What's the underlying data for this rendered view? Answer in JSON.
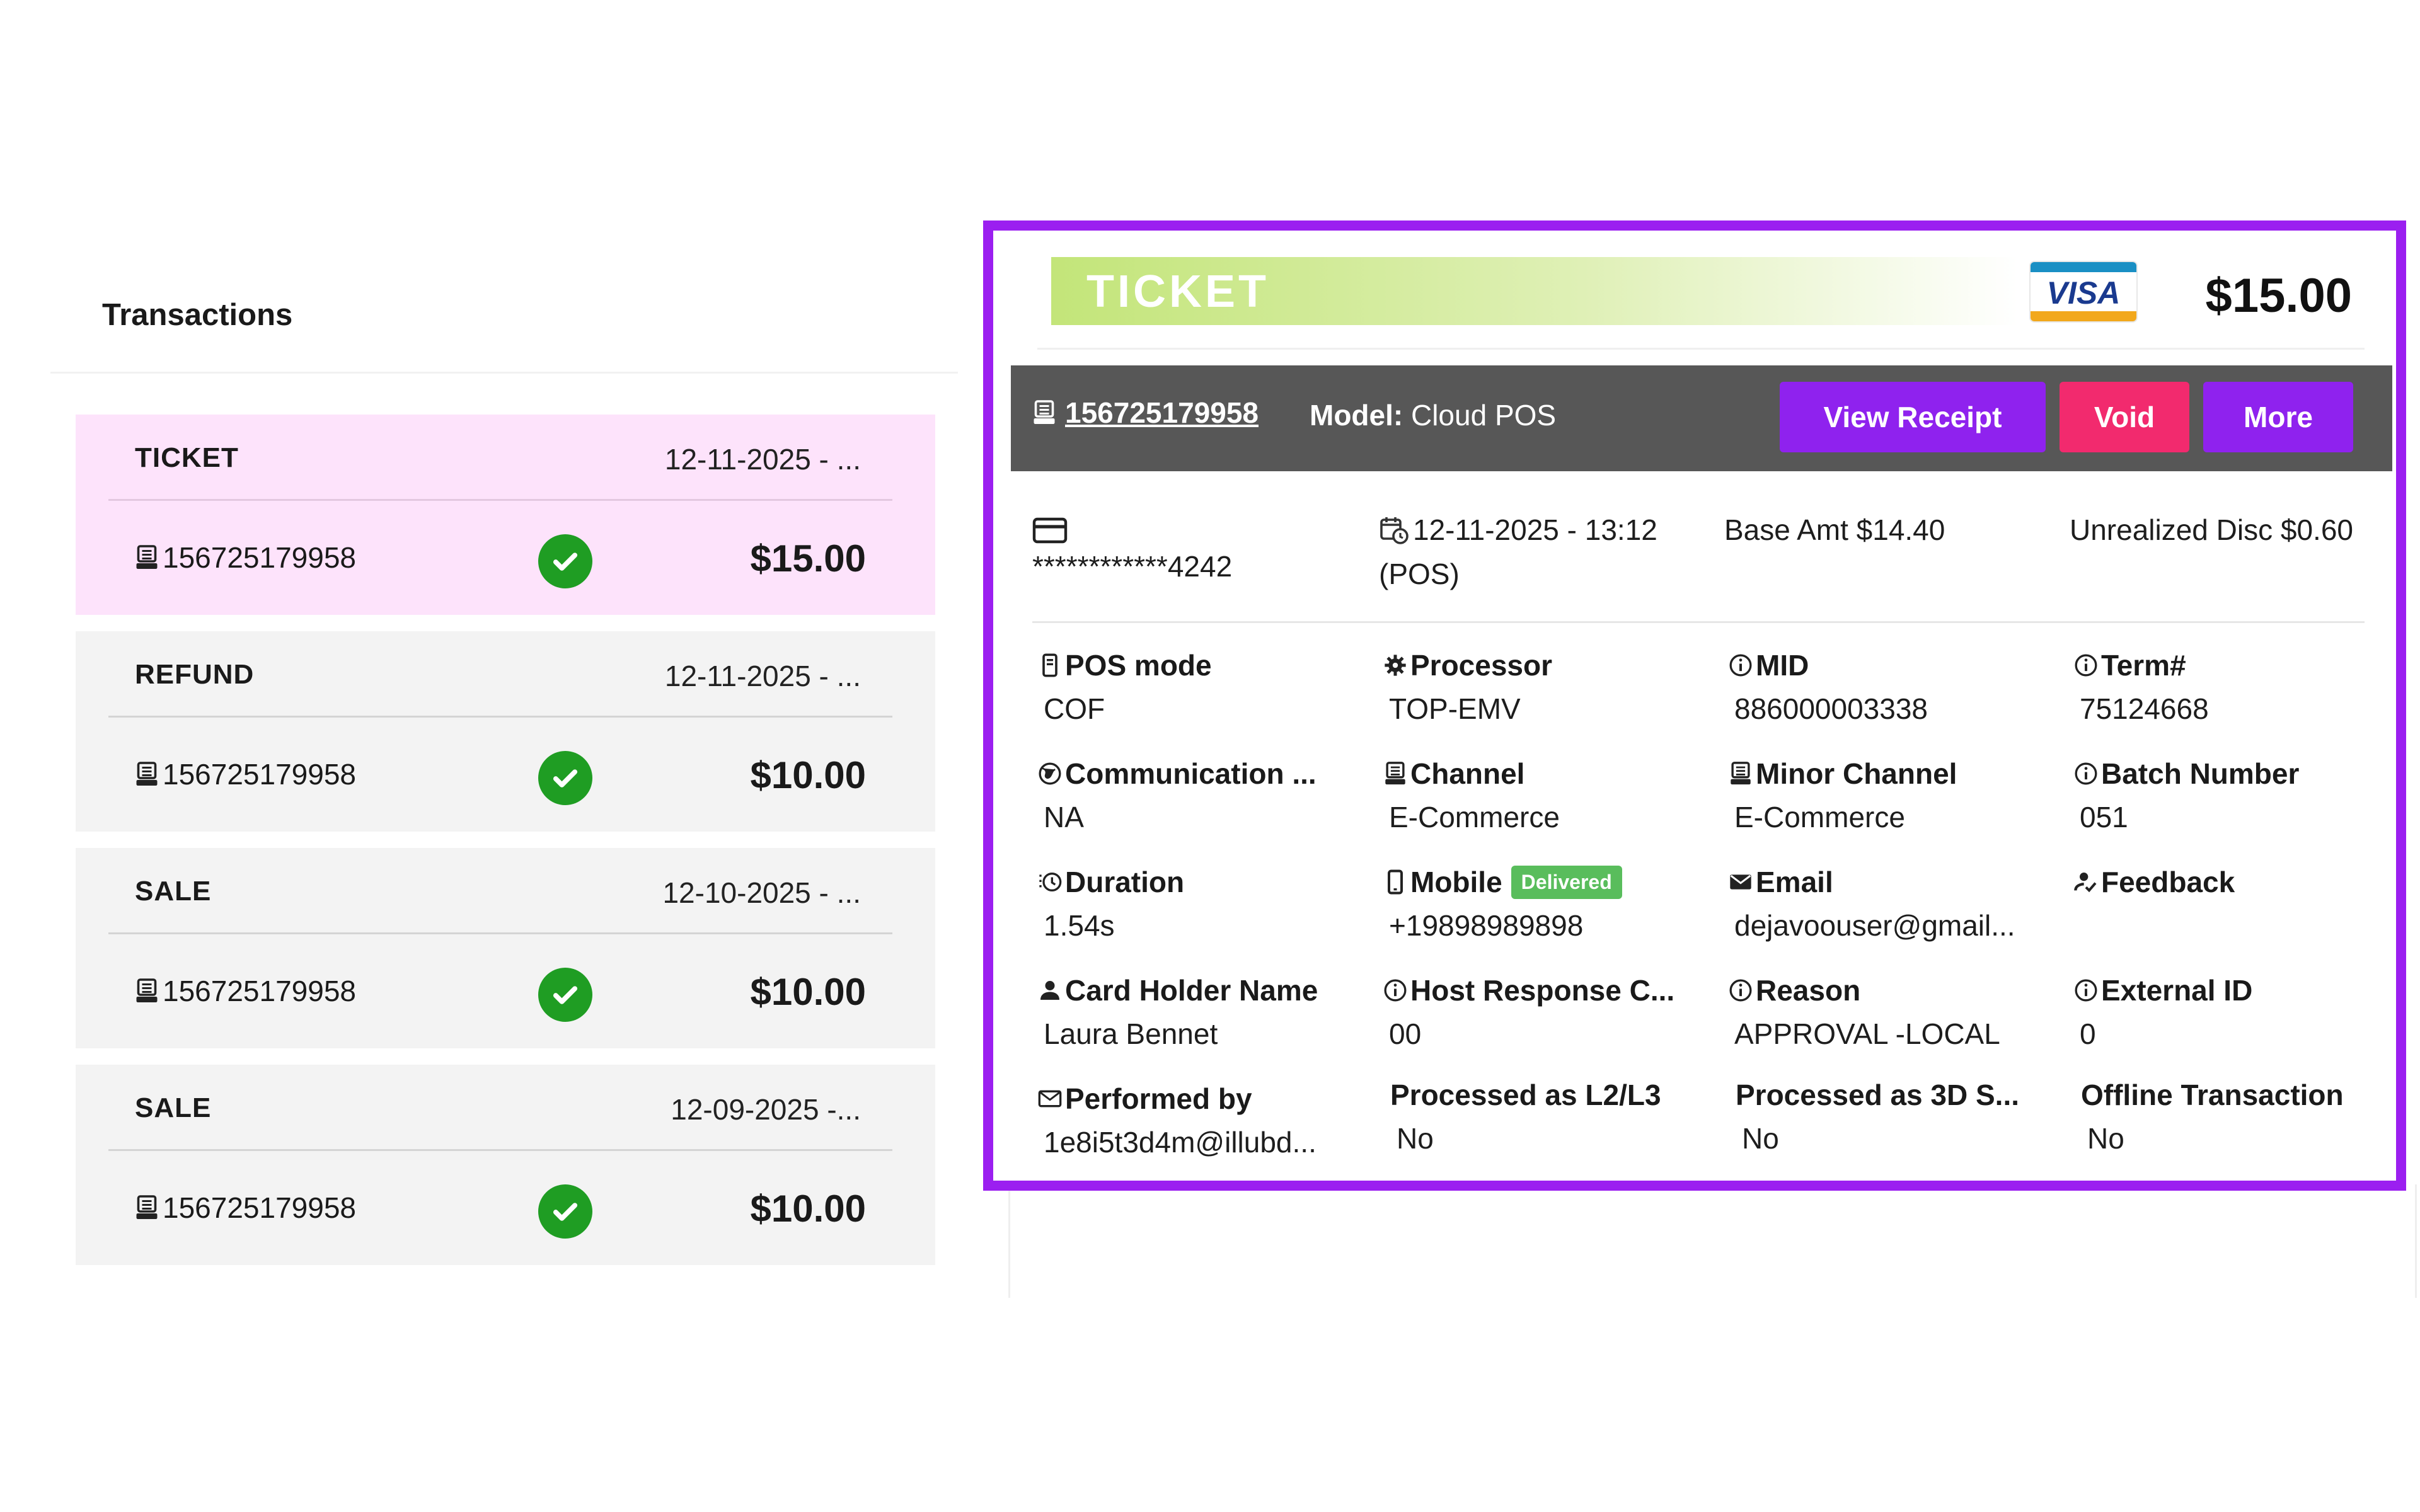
{
  "transactions": {
    "title": "Transactions",
    "items": [
      {
        "type": "TICKET",
        "date": "12-11-2025 - ...",
        "id": "156725179958",
        "amount": "$15.00"
      },
      {
        "type": "REFUND",
        "date": "12-11-2025 - ...",
        "id": "156725179958",
        "amount": "$10.00"
      },
      {
        "type": "SALE",
        "date": "12-10-2025 - ...",
        "id": "156725179958",
        "amount": "$10.00"
      },
      {
        "type": "SALE",
        "date": "12-09-2025 -...",
        "id": "156725179958",
        "amount": "$10.00"
      }
    ]
  },
  "detail": {
    "header": {
      "title": "TICKET",
      "card_brand": "VISA",
      "amount": "$15.00"
    },
    "bar": {
      "id": "156725179958",
      "model_label": "Model:",
      "model_value": "Cloud POS",
      "buttons": {
        "view_receipt": "View Receipt",
        "void": "Void",
        "more": "More"
      }
    },
    "info": {
      "card_number": "************4242",
      "datetime": "12-11-2025 - 13:12",
      "source": "(POS)",
      "base_amt": "Base Amt $14.40",
      "unrealized_disc": "Unrealized Disc $0.60"
    },
    "fields": [
      {
        "label": "POS mode",
        "value": "COF",
        "icon": "pos-icon"
      },
      {
        "label": "Processor",
        "value": "TOP-EMV",
        "icon": "gear-icon"
      },
      {
        "label": "MID",
        "value": "886000003338",
        "icon": "info-icon"
      },
      {
        "label": "Term#",
        "value": "75124668",
        "icon": "info-icon"
      },
      {
        "label": "Communication ...",
        "value": "NA",
        "icon": "globe-icon"
      },
      {
        "label": "Channel",
        "value": "E-Commerce",
        "icon": "register-icon"
      },
      {
        "label": "Minor Channel",
        "value": "E-Commerce",
        "icon": "register-icon"
      },
      {
        "label": "Batch Number",
        "value": "051",
        "icon": "info-icon"
      },
      {
        "label": "Duration",
        "value": "1.54s",
        "icon": "clock-icon"
      },
      {
        "label": "Mobile",
        "value": "+19898989898",
        "icon": "phone-icon",
        "badge": "Delivered"
      },
      {
        "label": "Email",
        "value": "dejavoouser@gmail...",
        "icon": "email-icon"
      },
      {
        "label": "Feedback",
        "value": "",
        "icon": "feedback-icon"
      },
      {
        "label": "Card Holder Name",
        "value": "Laura Bennet",
        "icon": "person-icon"
      },
      {
        "label": "Host Response C...",
        "value": "00",
        "icon": "info-icon"
      },
      {
        "label": "Reason",
        "value": "APPROVAL -LOCAL",
        "icon": "info-icon"
      },
      {
        "label": "External ID",
        "value": "0",
        "icon": "info-icon"
      },
      {
        "label": "Performed by",
        "value": "1e8i5t3d4m@illubd...",
        "icon": "mail-outline-icon"
      },
      {
        "label": "Processed as L2/L3",
        "value": "No",
        "icon": ""
      },
      {
        "label": "Processed as 3D S...",
        "value": "No",
        "icon": ""
      },
      {
        "label": "Offline Transaction",
        "value": "No",
        "icon": ""
      }
    ]
  },
  "colors": {
    "accent_purple": "#9b1ff0",
    "void_pink": "#f22a6e",
    "success_green": "#1f9d23",
    "active_row": "#fde3fb"
  }
}
